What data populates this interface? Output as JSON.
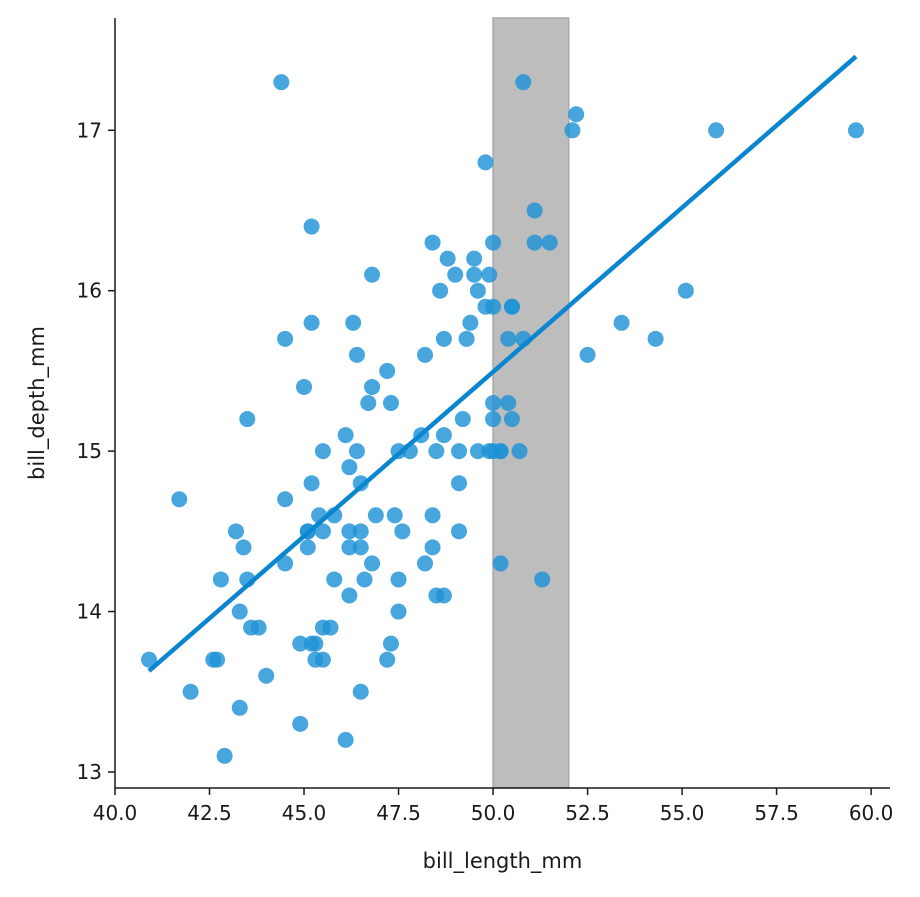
{
  "chart_data": {
    "type": "scatter",
    "title": "",
    "xlabel": "bill_length_mm",
    "ylabel": "bill_depth_mm",
    "xlim": [
      40.0,
      60.5
    ],
    "ylim": [
      12.9,
      17.7
    ],
    "x_ticks": [
      40.0,
      42.5,
      45.0,
      47.5,
      50.0,
      52.5,
      55.0,
      57.5,
      60.0
    ],
    "x_tick_labels": [
      "40.0",
      "42.5",
      "45.0",
      "47.5",
      "50.0",
      "52.5",
      "55.0",
      "57.5",
      "60.0"
    ],
    "y_ticks": [
      13,
      14,
      15,
      16,
      17
    ],
    "y_tick_labels": [
      "13",
      "14",
      "15",
      "16",
      "17"
    ],
    "grid": false,
    "point_color": "#1f93d6",
    "line_color": "#0a86d0",
    "band_color": "#bdbdbd",
    "band": {
      "x_start": 50.0,
      "x_end": 52.0
    },
    "regression_line": {
      "x": [
        40.9,
        59.6
      ],
      "y": [
        13.63,
        17.46
      ]
    },
    "points": {
      "x": [
        40.9,
        41.7,
        42.0,
        42.6,
        42.7,
        42.8,
        42.9,
        43.2,
        43.3,
        43.3,
        43.4,
        43.5,
        43.5,
        43.6,
        43.8,
        44.0,
        44.4,
        44.5,
        44.5,
        44.5,
        44.9,
        44.9,
        45.0,
        45.1,
        45.1,
        45.1,
        45.2,
        45.2,
        45.2,
        45.2,
        45.3,
        45.3,
        45.4,
        45.5,
        45.5,
        45.5,
        45.5,
        45.7,
        45.8,
        45.8,
        46.1,
        46.1,
        46.2,
        46.2,
        46.2,
        46.2,
        46.3,
        46.4,
        46.4,
        46.5,
        46.5,
        46.5,
        46.5,
        46.6,
        46.7,
        46.8,
        46.8,
        46.8,
        46.9,
        47.2,
        47.2,
        47.3,
        47.3,
        47.4,
        47.5,
        47.5,
        47.5,
        47.6,
        47.8,
        48.1,
        48.2,
        48.2,
        48.4,
        48.4,
        48.4,
        48.5,
        48.5,
        48.6,
        48.7,
        48.7,
        48.7,
        48.8,
        49.0,
        49.1,
        49.1,
        49.1,
        49.2,
        49.3,
        49.4,
        49.5,
        49.5,
        49.6,
        49.6,
        49.8,
        49.8,
        49.9,
        49.9,
        50.0,
        50.0,
        50.0,
        50.0,
        50.0,
        50.2,
        50.2,
        50.2,
        50.4,
        50.4,
        50.5,
        50.5,
        50.5,
        50.7,
        50.8,
        50.8,
        51.1,
        51.1,
        51.3,
        51.5,
        52.1,
        52.2,
        52.5,
        53.4,
        54.3,
        55.1,
        55.9,
        59.6
      ],
      "y": [
        13.7,
        14.7,
        13.5,
        13.7,
        13.7,
        14.2,
        13.1,
        14.5,
        13.4,
        14.0,
        14.4,
        15.2,
        14.2,
        13.9,
        13.9,
        13.6,
        17.3,
        14.3,
        15.7,
        14.7,
        13.3,
        13.8,
        15.4,
        14.5,
        14.5,
        14.4,
        16.4,
        15.8,
        14.8,
        13.8,
        13.8,
        13.7,
        14.6,
        15.0,
        14.5,
        13.9,
        13.7,
        13.9,
        14.6,
        14.2,
        15.1,
        13.2,
        14.9,
        14.5,
        14.4,
        14.1,
        15.8,
        15.6,
        15.0,
        14.8,
        14.4,
        14.5,
        13.5,
        14.2,
        15.3,
        16.1,
        15.4,
        14.3,
        14.6,
        15.5,
        13.7,
        15.3,
        13.8,
        14.6,
        15.0,
        14.2,
        14.0,
        14.5,
        15.0,
        15.1,
        15.6,
        14.3,
        16.3,
        14.6,
        14.4,
        15.0,
        14.1,
        16.0,
        15.7,
        15.1,
        14.1,
        16.2,
        16.1,
        15.0,
        14.8,
        14.5,
        15.2,
        15.7,
        15.8,
        16.2,
        16.1,
        16.0,
        15.0,
        16.8,
        15.9,
        16.1,
        15.0,
        16.3,
        15.9,
        15.3,
        15.2,
        15.0,
        15.0,
        15.0,
        14.3,
        15.7,
        15.3,
        15.9,
        15.9,
        15.2,
        15.0,
        17.3,
        15.7,
        16.5,
        16.3,
        14.2,
        16.3,
        17.0,
        17.1,
        15.6,
        15.8,
        15.7,
        16.0,
        17.0,
        17.0
      ]
    }
  }
}
